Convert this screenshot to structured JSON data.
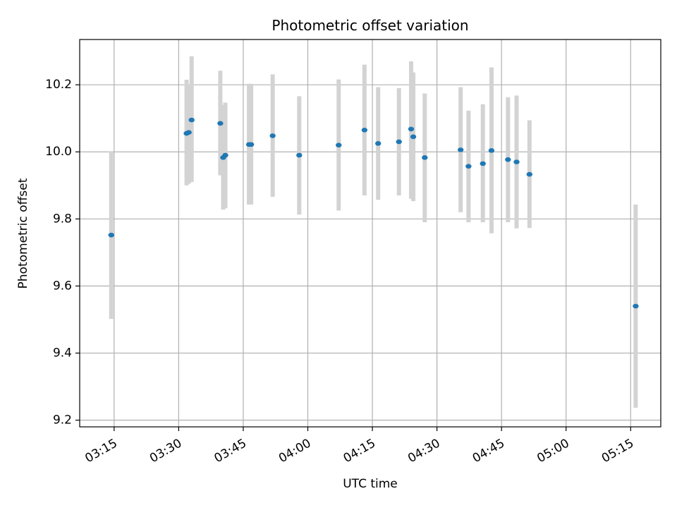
{
  "chart_data": {
    "type": "scatter",
    "title": "Photometric offset variation",
    "xlabel": "UTC time",
    "ylabel": "Photometric offset",
    "xlim": [
      "03:07",
      "05:22"
    ],
    "ylim": [
      9.18,
      10.335
    ],
    "x_ticks": [
      "03:15",
      "03:30",
      "03:45",
      "04:00",
      "04:15",
      "04:30",
      "04:45",
      "05:00",
      "05:15"
    ],
    "y_ticks": [
      9.2,
      9.4,
      9.6,
      9.8,
      10.0,
      10.2
    ],
    "grid": true,
    "colors": {
      "point": "#1f77b4",
      "errorbar": "#d3d3d3",
      "grid": "#b0b0b0",
      "axes": "#000000"
    },
    "points": [
      {
        "x": "03:14:20",
        "y": 9.752,
        "low": 9.502,
        "high": 10.002
      },
      {
        "x": "03:31:50",
        "y": 10.055,
        "low": 9.9,
        "high": 10.215
      },
      {
        "x": "03:32:20",
        "y": 10.058,
        "low": 9.905,
        "high": 10.202
      },
      {
        "x": "03:33:00",
        "y": 10.095,
        "low": 9.91,
        "high": 10.285
      },
      {
        "x": "03:39:40",
        "y": 10.085,
        "low": 9.93,
        "high": 10.242
      },
      {
        "x": "03:40:20",
        "y": 9.983,
        "low": 9.828,
        "high": 10.14
      },
      {
        "x": "03:40:50",
        "y": 9.99,
        "low": 9.832,
        "high": 10.147
      },
      {
        "x": "03:46:20",
        "y": 10.022,
        "low": 9.843,
        "high": 10.203
      },
      {
        "x": "03:46:50",
        "y": 10.022,
        "low": 9.843,
        "high": 10.203
      },
      {
        "x": "03:51:50",
        "y": 10.048,
        "low": 9.866,
        "high": 10.231
      },
      {
        "x": "03:58:00",
        "y": 9.99,
        "low": 9.813,
        "high": 10.166
      },
      {
        "x": "04:07:10",
        "y": 10.02,
        "low": 9.825,
        "high": 10.216
      },
      {
        "x": "04:13:10",
        "y": 10.065,
        "low": 9.87,
        "high": 10.26
      },
      {
        "x": "04:16:20",
        "y": 10.025,
        "low": 9.857,
        "high": 10.193
      },
      {
        "x": "04:21:10",
        "y": 10.03,
        "low": 9.87,
        "high": 10.19
      },
      {
        "x": "04:24:00",
        "y": 10.068,
        "low": 9.86,
        "high": 10.27
      },
      {
        "x": "04:24:30",
        "y": 10.045,
        "low": 9.853,
        "high": 10.237
      },
      {
        "x": "04:27:10",
        "y": 9.983,
        "low": 9.79,
        "high": 10.174
      },
      {
        "x": "04:35:30",
        "y": 10.006,
        "low": 9.82,
        "high": 10.193
      },
      {
        "x": "04:37:20",
        "y": 9.957,
        "low": 9.79,
        "high": 10.123
      },
      {
        "x": "04:40:40",
        "y": 9.965,
        "low": 9.79,
        "high": 10.142
      },
      {
        "x": "04:42:40",
        "y": 10.004,
        "low": 9.757,
        "high": 10.252
      },
      {
        "x": "04:46:30",
        "y": 9.977,
        "low": 9.79,
        "high": 10.163
      },
      {
        "x": "04:48:30",
        "y": 9.97,
        "low": 9.772,
        "high": 10.168
      },
      {
        "x": "04:51:30",
        "y": 9.933,
        "low": 9.773,
        "high": 10.094
      },
      {
        "x": "05:16:10",
        "y": 9.54,
        "low": 9.237,
        "high": 9.843
      }
    ]
  }
}
